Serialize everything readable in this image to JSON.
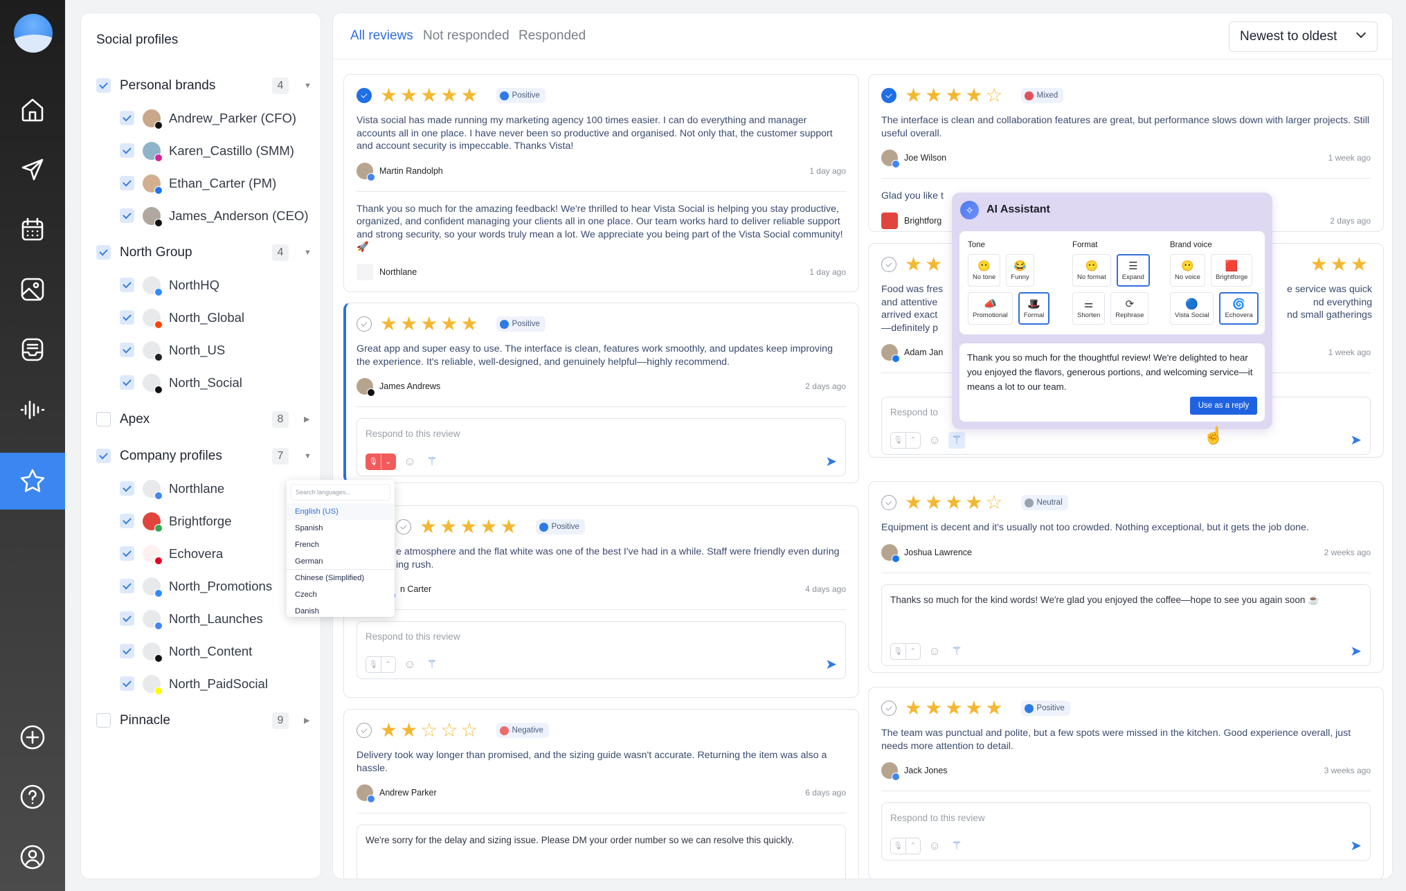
{
  "nav": {
    "logo": "vista-social-logo",
    "items": [
      {
        "icon": "home-icon",
        "active": false
      },
      {
        "icon": "send-icon",
        "active": false
      },
      {
        "icon": "calendar-icon",
        "active": false
      },
      {
        "icon": "media-icon",
        "active": false
      },
      {
        "icon": "inbox-icon",
        "active": false
      },
      {
        "icon": "listening-icon",
        "active": false
      },
      {
        "icon": "star-icon",
        "active": true
      }
    ],
    "bottom_items": [
      {
        "icon": "add-icon"
      },
      {
        "icon": "help-icon"
      },
      {
        "icon": "profile-icon"
      }
    ]
  },
  "sidebar": {
    "title": "Social profiles",
    "groups": [
      {
        "name": "Personal brands",
        "checked": true,
        "count": "4",
        "expanded": true,
        "profiles": [
          {
            "name": "Andrew_Parker (CFO)",
            "network": "tiktok"
          },
          {
            "name": "Karen_Castillo (SMM)",
            "network": "instagram"
          },
          {
            "name": "Ethan_Carter (PM)",
            "network": "facebook"
          },
          {
            "name": "James_Anderson (CEO)",
            "network": "x"
          }
        ]
      },
      {
        "name": "North Group",
        "checked": true,
        "count": "4",
        "expanded": true,
        "profiles": [
          {
            "name": "NorthHQ",
            "network": "messenger"
          },
          {
            "name": "North_Global",
            "network": "reddit"
          },
          {
            "name": "North_US",
            "network": "apple"
          },
          {
            "name": "North_Social",
            "network": "threads"
          }
        ]
      },
      {
        "name": "Apex",
        "checked": false,
        "count": "8",
        "expanded": false,
        "profiles": []
      },
      {
        "name": "Company profiles",
        "checked": true,
        "count": "7",
        "expanded": true,
        "profiles": [
          {
            "name": "Northlane",
            "network": "google"
          },
          {
            "name": "Brightforge",
            "network": "googleplay"
          },
          {
            "name": "Echovera",
            "network": "pinterest"
          },
          {
            "name": "North_Promotions",
            "network": "messenger"
          },
          {
            "name": "North_Launches",
            "network": "google"
          },
          {
            "name": "North_Content",
            "network": "threads"
          },
          {
            "name": "North_PaidSocial",
            "network": "snapchat"
          }
        ]
      },
      {
        "name": "Pinnacle",
        "checked": false,
        "count": "9",
        "expanded": false,
        "profiles": []
      }
    ]
  },
  "tabs": [
    {
      "label": "All reviews",
      "active": true
    },
    {
      "label": "Not responded",
      "active": false
    },
    {
      "label": "Responded",
      "active": false
    }
  ],
  "sort": {
    "label": "Newest to oldest"
  },
  "reviews": {
    "left": [
      {
        "selected": true,
        "rating": 5,
        "sentiment": "Positive",
        "text": "Vista social has made running my marketing agency 100 times easier. I can do everything and manager accounts all in one place. I have never been so productive and organised. Not only that, the customer support and account security is impeccable. Thanks Vista!",
        "author": "Martin Randolph",
        "network": "google",
        "time": "1 day ago",
        "reply": {
          "text": "Thank you so much for the amazing feedback! We're thrilled to hear Vista Social is helping you stay productive, organized, and confident managing your clients all in one place. Our team works hard to deliver reliable support and strong security, so your words truly mean a lot. We appreciate you being part of the Vista Social community! 🚀",
          "author": "Northlane",
          "time": "1 day ago"
        }
      },
      {
        "selected": false,
        "rating": 5,
        "sentiment": "Positive",
        "active": true,
        "text": "Great app and super easy to use. The interface is clean, features work smoothly, and updates keep improving the experience. It's reliable, well-designed, and genuinely helpful—highly recommend.",
        "author": "James Andrews",
        "network": "x",
        "time": "2 days ago",
        "reply_box": {
          "placeholder": "Respond to this review",
          "value": "",
          "recording": true
        }
      },
      {
        "selected": false,
        "rating": 5,
        "sentiment": "Positive",
        "lines": [
          [
            "e atmosphere and the flat white was one of the best I've had in a while. Staff were friendly even during"
          ],
          [
            "ing rush."
          ]
        ],
        "author": "n Carter",
        "network": "google",
        "time": "4 days ago",
        "reply_box": {
          "placeholder": "Respond to this review",
          "value": ""
        }
      },
      {
        "selected": false,
        "rating": 2,
        "sentiment": "Negative",
        "text": "Delivery took way longer than promised, and the sizing guide wasn't accurate. Returning the item was also a hassle.",
        "author": "Andrew Parker",
        "network": "google",
        "time": "6 days ago",
        "reply_box": {
          "placeholder": "",
          "value": "We're sorry for the delay and sizing issue. Please DM your order number so we can resolve this quickly."
        }
      }
    ],
    "right": [
      {
        "selected": true,
        "rating": 4,
        "sentiment": "Mixed",
        "text": "The interface is clean and collaboration features are great, but performance slows down with larger projects. Still useful overall.",
        "author": "Joe Wilson",
        "network": "google",
        "time": "1 week ago",
        "reply": {
          "text": "Glad you like t",
          "author": "Brightforg",
          "time": "2 days ago"
        }
      },
      {
        "selected": false,
        "rating": 5,
        "sentiment": "",
        "lines": [
          [
            "Food was fres",
            "e service was quick"
          ],
          [
            "and attentive",
            "nd everything"
          ],
          [
            "arrived exact",
            "nd small gatherings"
          ],
          [
            "—definitely p",
            ""
          ]
        ],
        "author": "Adam Jan",
        "network": "facebook",
        "time": "1 week ago",
        "reply_box": {
          "placeholder": "Respond to",
          "value": "",
          "wand_active": true
        }
      },
      {
        "selected": false,
        "rating": 4,
        "sentiment": "Neutral",
        "text": "Equipment is decent and it's usually not too crowded. Nothing exceptional, but it gets the job done.",
        "author": "Joshua Lawrence",
        "network": "facebook",
        "time": "2 weeks ago",
        "reply_box": {
          "placeholder": "",
          "value": "Thanks so much for the kind words! We're glad you enjoyed the coffee—hope to see you again soon ☕"
        }
      },
      {
        "selected": false,
        "rating": 5,
        "sentiment": "Positive",
        "text": "The team was punctual and polite, but a few spots were missed in the kitchen. Good experience overall, just needs more attention to detail.",
        "author": "Jack Jones",
        "network": "google",
        "time": "3 weeks ago",
        "reply_box": {
          "placeholder": "Respond to this review",
          "value": ""
        }
      }
    ]
  },
  "ai_assistant": {
    "title": "AI Assistant",
    "groups": [
      {
        "label": "Tone",
        "rows": [
          [
            {
              "label": "No tone",
              "icon": "😶"
            },
            {
              "label": "Funny",
              "icon": "😂"
            }
          ],
          [
            {
              "label": "Promotional",
              "icon": "📣"
            },
            {
              "label": "Formal",
              "icon": "🎩",
              "selected": true
            }
          ]
        ]
      },
      {
        "label": "Format",
        "rows": [
          [
            {
              "label": "No format",
              "icon": "😶"
            },
            {
              "label": "Expand",
              "icon": "☰",
              "selected": true
            }
          ],
          [
            {
              "label": "Shorten",
              "icon": "⚌"
            },
            {
              "label": "Rephrase",
              "icon": "⟳"
            }
          ]
        ]
      },
      {
        "label": "Brand voice",
        "rows": [
          [
            {
              "label": "No voice",
              "icon": "😶"
            },
            {
              "label": "Brightforge",
              "icon": "🟥"
            }
          ],
          [
            {
              "label": "Vista Social",
              "icon": "🔵"
            },
            {
              "label": "Echovera",
              "icon": "🌀",
              "selected": true
            }
          ]
        ]
      }
    ],
    "output": "Thank you so much for the thoughtful review! We're delighted to hear you enjoyed the flavors, generous portions, and welcoming service—it means a lot to our team.",
    "use_button": "Use as a reply"
  },
  "language_menu": {
    "placeholder": "Search languages...",
    "options": [
      "English (US)",
      "Spanish",
      "French",
      "German",
      "Chinese (Simplified)",
      "Czech",
      "Danish"
    ],
    "selected": "English (US)"
  },
  "colors": {
    "accent": "#2f6fe0",
    "star": "#f4b731",
    "positive": "#2f7be5",
    "negative": "#ef6b6b",
    "neutral": "#9aa3ad",
    "ai_panel": "#dfd8f2"
  }
}
